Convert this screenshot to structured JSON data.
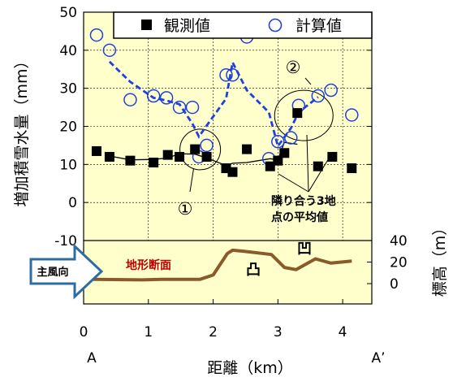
{
  "chart_data": {
    "type": "scatter",
    "x_axis": {
      "label": "距離（km）",
      "ticks": [
        0,
        1,
        2,
        3,
        4
      ],
      "range": [
        0,
        4.45
      ],
      "end_labels": [
        "A",
        "A’"
      ]
    },
    "y_axis_top": {
      "label": "増加積雪水量（mm）",
      "ticks": [
        -10,
        0,
        10,
        20,
        30,
        40,
        50
      ],
      "range": [
        -10,
        50
      ]
    },
    "y_axis_bottom": {
      "label": "標高（m）",
      "ticks": [
        0,
        20,
        40
      ],
      "range": [
        0,
        40
      ]
    },
    "legend": {
      "position": "top",
      "entries": [
        "観測値",
        "計算値"
      ]
    },
    "series": [
      {
        "name": "観測値",
        "marker": "filled-square",
        "color": "#000000",
        "x": [
          0.2,
          0.4,
          0.72,
          1.08,
          1.3,
          1.48,
          1.72,
          1.9,
          2.2,
          2.3,
          2.52,
          2.88,
          3.0,
          3.1,
          3.3,
          3.62,
          3.84,
          4.14
        ],
        "y": [
          13.5,
          12,
          11,
          10.5,
          12.5,
          12,
          14,
          12,
          9,
          8,
          14,
          9.5,
          11,
          13,
          23.5,
          9.5,
          12,
          9
        ]
      },
      {
        "name": "計算値",
        "marker": "open-circle",
        "color": "#1f3fe0",
        "x": [
          0.2,
          0.4,
          0.72,
          1.08,
          1.28,
          1.48,
          1.68,
          1.78,
          1.9,
          2.2,
          2.3,
          2.52,
          2.86,
          3.0,
          3.2,
          3.32,
          3.62,
          3.82,
          4.14
        ],
        "y": [
          44,
          40,
          27,
          28,
          27.5,
          25,
          25,
          12,
          15,
          33.5,
          33.5,
          43.5,
          11.5,
          16,
          17,
          25.5,
          28,
          29.5,
          23
        ]
      },
      {
        "kind": "moving-average",
        "of": "観測値",
        "style": "solid",
        "color": "#000000",
        "x": [
          0.4,
          0.72,
          1.08,
          1.3,
          1.48,
          1.72,
          1.9,
          2.2,
          2.3,
          2.52,
          2.88,
          3.0,
          3.1,
          3.3
        ],
        "y": [
          12.2,
          11.2,
          11.3,
          11.7,
          12.8,
          12.7,
          11.7,
          9.7,
          10.3,
          10.5,
          11.5,
          11.2,
          15.8,
          15.3
        ]
      },
      {
        "kind": "moving-average",
        "of": "計算値",
        "style": "dashed",
        "color": "#1f3fe0",
        "x": [
          0.4,
          0.72,
          1.08,
          1.28,
          1.48,
          1.68,
          1.78,
          1.9,
          2.2,
          2.3,
          2.52,
          2.86,
          3.0,
          3.2,
          3.32,
          3.62
        ],
        "y": [
          37,
          31.7,
          27.5,
          26.8,
          25.8,
          20.7,
          17.3,
          20.2,
          27.3,
          36.8,
          29.5,
          23.7,
          14.8,
          19.5,
          23.7,
          27.7
        ]
      },
      {
        "name": "地形断面",
        "kind": "terrain",
        "color": "#8b5a2b",
        "x": [
          0.15,
          0.9,
          1.2,
          1.8,
          2.0,
          2.22,
          2.3,
          2.48,
          2.9,
          3.1,
          3.28,
          3.58,
          3.82,
          4.14
        ],
        "y": [
          4,
          3.5,
          4,
          4,
          8,
          28,
          31,
          30,
          27,
          15,
          13,
          23,
          19,
          21
        ]
      }
    ],
    "annotations": {
      "circle1": {
        "label": "①",
        "cx": 1.75,
        "cy": 15
      },
      "circle2": {
        "label": "②",
        "cx": 3.4,
        "cy": 25
      },
      "avg_note": [
        "隣り合う3地",
        "点の平均値"
      ],
      "wind_label": "主風向",
      "terrain_label": "地形断面",
      "concave_label": "凹",
      "convex_label": "凸"
    }
  }
}
